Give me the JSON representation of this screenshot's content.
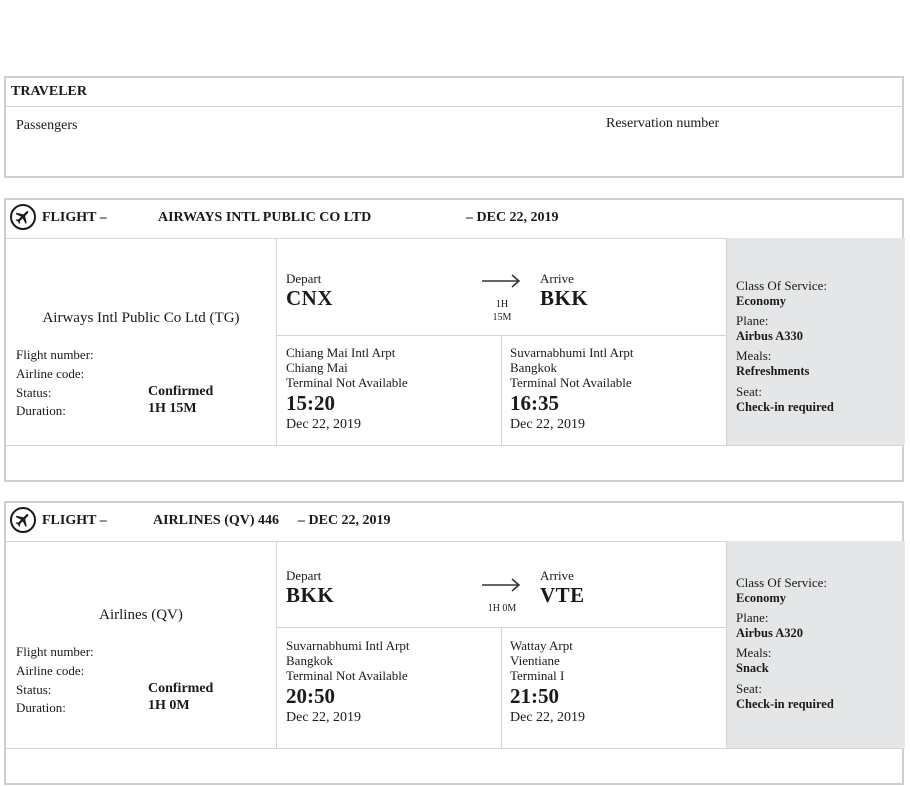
{
  "traveler": {
    "title": "TRAVELER",
    "passengers_label": "Passengers",
    "reservation_label": "Reservation number"
  },
  "flights": [
    {
      "header_prefix": "FLIGHT –",
      "header_carrier": "AIRWAYS INTL PUBLIC CO LTD",
      "header_date": "–  DEC 22, 2019",
      "airline_name": "Airways Intl Public Co Ltd (TG)",
      "flight_number_label": "Flight number:",
      "airline_code_label": "Airline code:",
      "status_label": "Status:",
      "status_value": "Confirmed",
      "duration_label": "Duration:",
      "duration_value": "1H 15M",
      "depart_label": "Depart",
      "depart_code": "CNX",
      "arrive_label": "Arrive",
      "arrive_code": "BKK",
      "duration_line1": "1H",
      "duration_line2": "15M",
      "dep_airport": "Chiang Mai Intl Arpt",
      "dep_city": "Chiang Mai",
      "dep_terminal": "Terminal Not Available",
      "dep_time": "15:20",
      "dep_date": "Dec 22, 2019",
      "arr_airport": "Suvarnabhumi Intl Arpt",
      "arr_city": "Bangkok",
      "arr_terminal": "Terminal Not Available",
      "arr_time": "16:35",
      "arr_date": "Dec 22, 2019",
      "class_label": "Class Of Service:",
      "class_value": "Economy",
      "plane_label": "Plane:",
      "plane_value": "Airbus A330",
      "meals_label": "Meals:",
      "meals_value": "Refreshments",
      "seat_label": "Seat:",
      "seat_value": "Check-in required"
    },
    {
      "header_prefix": "FLIGHT –",
      "header_carrier": "AIRLINES (QV) 446",
      "header_date": "–   DEC 22, 2019",
      "airline_name": "Airlines (QV)",
      "flight_number_label": "Flight number:",
      "airline_code_label": "Airline code:",
      "status_label": "Status:",
      "status_value": "Confirmed",
      "duration_label": "Duration:",
      "duration_value": "1H 0M",
      "depart_label": "Depart",
      "depart_code": "BKK",
      "arrive_label": "Arrive",
      "arrive_code": "VTE",
      "duration_line1": "1H 0M",
      "duration_line2": "",
      "dep_airport": "Suvarnabhumi Intl Arpt",
      "dep_city": "Bangkok",
      "dep_terminal": "Terminal Not Available",
      "dep_time": "20:50",
      "dep_date": "Dec 22, 2019",
      "arr_airport": "Wattay Arpt",
      "arr_city": "Vientiane",
      "arr_terminal": "Terminal I",
      "arr_time": "21:50",
      "arr_date": "Dec 22, 2019",
      "class_label": "Class Of Service:",
      "class_value": "Economy",
      "plane_label": "Plane:",
      "plane_value": "Airbus A320",
      "meals_label": "Meals:",
      "meals_value": "Snack",
      "seat_label": "Seat:",
      "seat_value": "Check-in required"
    }
  ],
  "icons": {
    "flight": "airplane-icon",
    "arrow": "arrow-right-icon"
  }
}
